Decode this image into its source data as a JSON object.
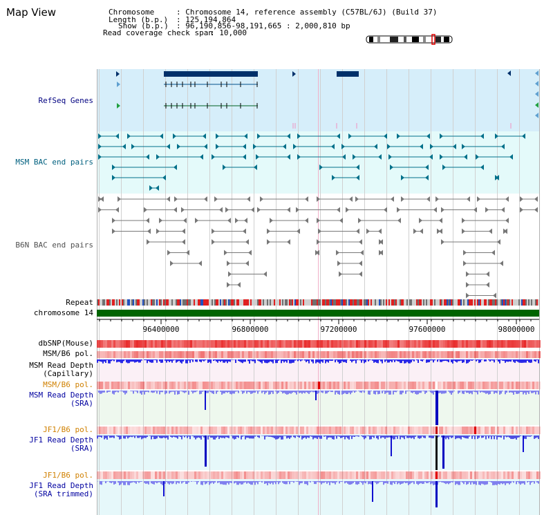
{
  "title": "Map View",
  "info": {
    "chromosome_key": "Chromosome",
    "chromosome_val": ": Chromosome 14, reference assembly (C57BL/6J) (Build 37)",
    "length_key": "Length (b.p.)",
    "length_val": ": 125,194,864",
    "show_key": "Show (b.p.)",
    "show_val": ": 96,190,856-98,191,665 : 2,000,810 bp",
    "span_key": "Read coverage check span",
    "span_val": ": 10,000"
  },
  "tracks": {
    "refseq": "RefSeq Genes",
    "msm_bac": "MSM BAC end pairs",
    "b6n_bac": "B6N BAC end pairs",
    "repeat": "Repeat",
    "chromosome": "chromosome 14",
    "dbsnp": "dbSNP(Mouse)",
    "msm_b6_pol_1": "MSM/B6 pol.",
    "msm_depth_cap_1": "MSM Read Depth",
    "msm_depth_cap_2": "(Capillary)",
    "msm_b6_pol_2": "MSM/B6 pol.",
    "msm_depth_sra_1": "MSM Read Depth",
    "msm_depth_sra_2": "(SRA)",
    "jf1_b6_pol_1": "JF1/B6 pol.",
    "jf1_depth_sra_1": "JF1 Read Depth",
    "jf1_depth_sra_2": "(SRA)",
    "jf1_b6_pol_2": "JF1/B6 pol.",
    "jf1_depth_trim_1": "JF1 Read Depth",
    "jf1_depth_trim_2": "(SRA trimmed)"
  },
  "axis": {
    "ticks": [
      "96400000",
      "96800000",
      "97200000",
      "97600000",
      "98000000"
    ]
  },
  "colors": {
    "refseq_bg": "#d6eefa",
    "msm_bac_bg": "#e4fafa",
    "chromosome_bar": "#006400",
    "depth_blue": "#2a2ae8",
    "gene_dark": "#00306a"
  }
}
